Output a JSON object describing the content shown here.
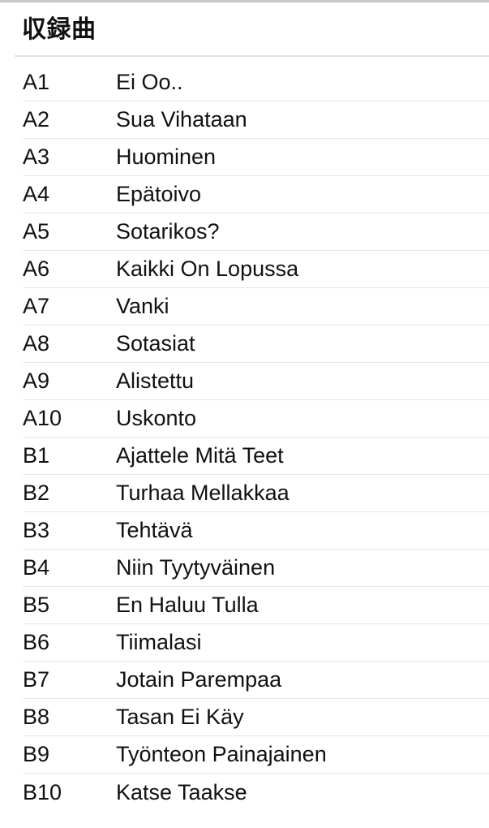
{
  "section": {
    "title": "収録曲"
  },
  "tracklist": [
    {
      "position": "A1",
      "title": "Ei Oo.."
    },
    {
      "position": "A2",
      "title": "Sua Vihataan"
    },
    {
      "position": "A3",
      "title": "Huominen"
    },
    {
      "position": "A4",
      "title": "Epätoivo"
    },
    {
      "position": "A5",
      "title": "Sotarikos?"
    },
    {
      "position": "A6",
      "title": "Kaikki On Lopussa"
    },
    {
      "position": "A7",
      "title": "Vanki"
    },
    {
      "position": "A8",
      "title": "Sotasiat"
    },
    {
      "position": "A9",
      "title": "Alistettu"
    },
    {
      "position": "A10",
      "title": "Uskonto"
    },
    {
      "position": "B1",
      "title": "Ajattele Mitä Teet"
    },
    {
      "position": "B2",
      "title": "Turhaa Mellakkaa"
    },
    {
      "position": "B3",
      "title": "Tehtävä"
    },
    {
      "position": "B4",
      "title": "Niin Tyytyväinen"
    },
    {
      "position": "B5",
      "title": "En Haluu Tulla"
    },
    {
      "position": "B6",
      "title": "Tiimalasi"
    },
    {
      "position": "B7",
      "title": "Jotain Parempaa"
    },
    {
      "position": "B8",
      "title": "Tasan Ei Käy"
    },
    {
      "position": "B9",
      "title": "Työnteon Painajainen"
    },
    {
      "position": "B10",
      "title": "Katse Taakse"
    }
  ]
}
